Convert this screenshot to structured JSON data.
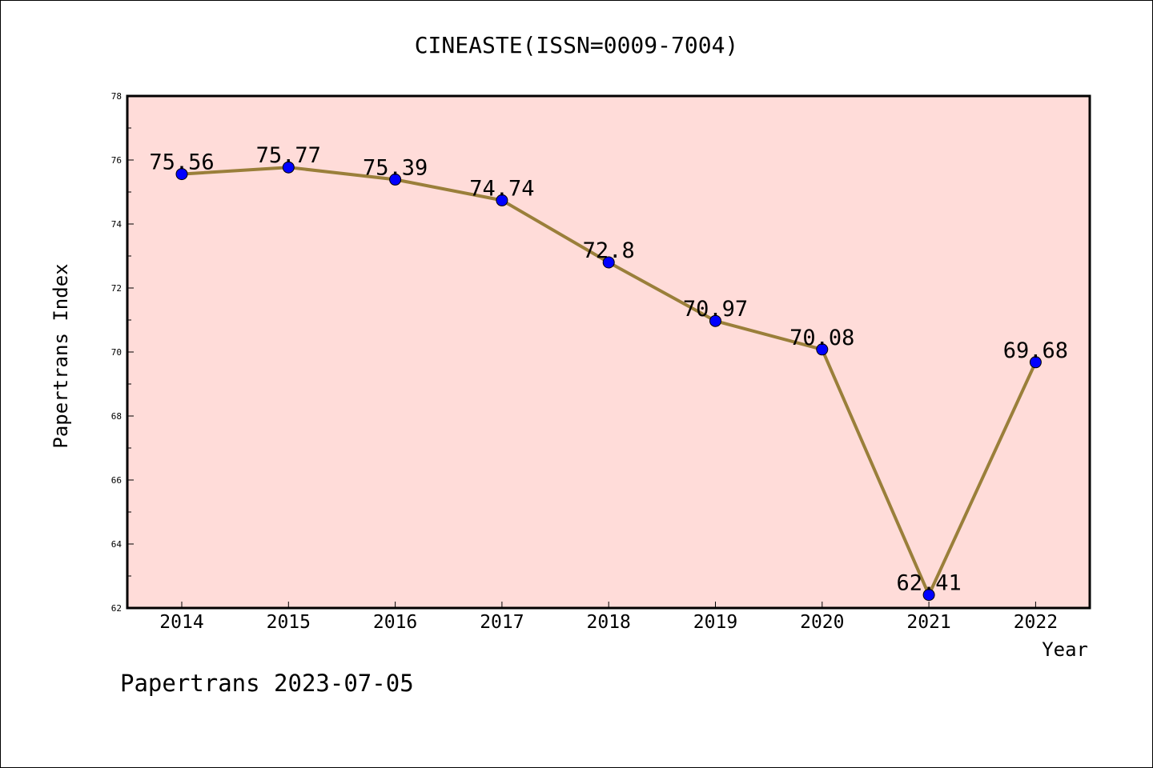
{
  "chart_data": {
    "type": "line",
    "title": "CINEASTE(ISSN=0009-7004)",
    "xlabel": "Year",
    "ylabel": "Papertrans Index",
    "categories": [
      "2014",
      "2015",
      "2016",
      "2017",
      "2018",
      "2019",
      "2020",
      "2021",
      "2022"
    ],
    "values": [
      75.56,
      75.77,
      75.39,
      74.74,
      72.8,
      70.97,
      70.08,
      62.41,
      69.68
    ],
    "value_labels": [
      "75.56",
      "75.77",
      "75.39",
      "74.74",
      "72.8",
      "70.97",
      "70.08",
      "62.41",
      "69.68"
    ],
    "ylim": [
      62,
      78
    ],
    "yticks": [
      62,
      64,
      66,
      68,
      70,
      72,
      74,
      76,
      78
    ],
    "grid": false,
    "legend": "none",
    "footer": "Papertrans 2023-07-05",
    "colors": {
      "plot_background": "#ffdcd9",
      "line": "#9a7f3a",
      "marker": "#0000ff"
    }
  }
}
